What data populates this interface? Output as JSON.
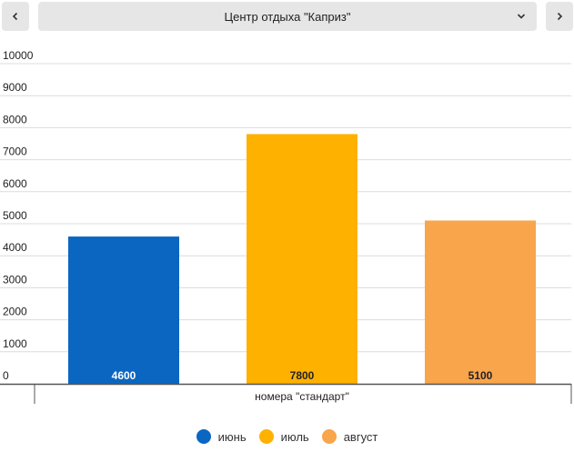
{
  "header": {
    "prev_icon": "chevron-left-icon",
    "next_icon": "chevron-right-icon",
    "selector_icon": "chevron-down-icon",
    "selected_location": "Центр отдыха \"Каприз\""
  },
  "chart_data": {
    "type": "bar",
    "categories": [
      "номера \"стандарт\""
    ],
    "series": [
      {
        "name": "июнь",
        "values": [
          4600
        ],
        "color": "#0b66c1"
      },
      {
        "name": "июль",
        "values": [
          7800
        ],
        "color": "#ffb100"
      },
      {
        "name": "август",
        "values": [
          5100
        ],
        "color": "#f8a54b"
      }
    ],
    "ylim": [
      0,
      10000
    ],
    "yticks": [
      0,
      1000,
      2000,
      3000,
      4000,
      5000,
      6000,
      7000,
      8000,
      9000,
      10000
    ],
    "grid": true,
    "legend_position": "bottom-center",
    "data_labels": true
  }
}
